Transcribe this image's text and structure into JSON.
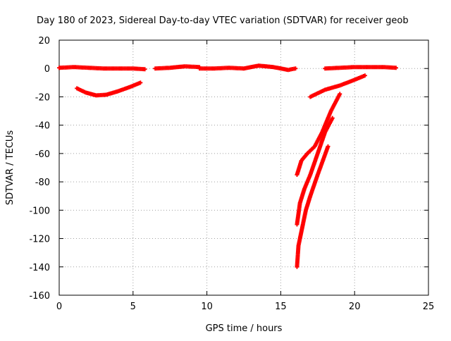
{
  "chart_data": {
    "type": "scatter",
    "title": "Day 180 of 2023, Sidereal Day-to-day VTEC variation (SDTVAR) for receiver geob",
    "xlabel": "GPS time / hours",
    "ylabel": "SDTVAR / TECUs",
    "xlim": [
      0,
      25
    ],
    "ylim": [
      -160,
      20
    ],
    "xticks": [
      0,
      5,
      10,
      15,
      20,
      25
    ],
    "yticks": [
      -160,
      -140,
      -120,
      -100,
      -80,
      -60,
      -40,
      -20,
      0,
      20
    ],
    "grid": true,
    "legend": "none",
    "marker_color": "#ff0000",
    "series": [
      {
        "x": [
          0,
          1,
          2,
          3,
          4,
          5,
          5.8
        ],
        "y": [
          0.5,
          1,
          0.5,
          0,
          0,
          0,
          -0.5
        ]
      },
      {
        "x": [
          1.2,
          1.8,
          2.5,
          3.2,
          4,
          4.8,
          5.5
        ],
        "y": [
          -14,
          -17,
          -19,
          -18.5,
          -16,
          -13,
          -10
        ]
      },
      {
        "x": [
          6.5,
          7.5,
          8.5,
          9.5
        ],
        "y": [
          0,
          0.5,
          1.5,
          1
        ]
      },
      {
        "x": [
          9.5,
          10.5,
          11.5,
          12.5,
          13.5,
          14.5,
          15.5,
          16
        ],
        "y": [
          0,
          0,
          0.5,
          0,
          2,
          1,
          -1,
          0
        ]
      },
      {
        "x": [
          18,
          19,
          20,
          21,
          22,
          22.8
        ],
        "y": [
          0,
          0.5,
          1,
          1,
          1,
          0.5
        ]
      },
      {
        "x": [
          17,
          18,
          19,
          20,
          20.7
        ],
        "y": [
          -20,
          -15,
          -12,
          -8,
          -5
        ]
      },
      {
        "x": [
          16.1,
          16.4,
          16.8,
          17.3,
          17.8,
          18.4,
          19
        ],
        "y": [
          -75,
          -65,
          -60,
          -55,
          -45,
          -30,
          -18
        ]
      },
      {
        "x": [
          16.1,
          16.3,
          16.6,
          17,
          17.5,
          18,
          18.5
        ],
        "y": [
          -110,
          -95,
          -85,
          -75,
          -60,
          -45,
          -35
        ]
      },
      {
        "x": [
          16.1,
          16.2,
          16.4,
          16.7,
          17,
          17.5,
          18.2
        ],
        "y": [
          -140,
          -125,
          -115,
          -100,
          -90,
          -75,
          -55
        ]
      }
    ]
  }
}
